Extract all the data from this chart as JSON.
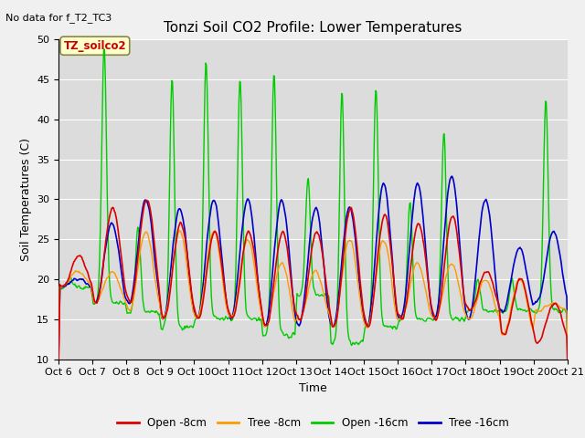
{
  "title": "Tonzi Soil CO2 Profile: Lower Temperatures",
  "subtitle": "No data for f_T2_TC3",
  "xlabel": "Time",
  "ylabel": "Soil Temperatures (C)",
  "ylim": [
    10,
    50
  ],
  "xlim": [
    0,
    15
  ],
  "plot_bg_color": "#dcdcdc",
  "fig_bg_color": "#f0f0f0",
  "legend_labels": [
    "Open -8cm",
    "Tree -8cm",
    "Open -16cm",
    "Tree -16cm"
  ],
  "legend_colors": [
    "#dd0000",
    "#ff9900",
    "#00cc00",
    "#0000cc"
  ],
  "xtick_labels": [
    "Oct 6",
    "Oct 7",
    "Oct 8",
    "Oct 9",
    "Oct 10",
    "Oct 11",
    "Oct 12",
    "Oct 13",
    "Oct 14",
    "Oct 15",
    "Oct 16",
    "Oct 17",
    "Oct 18",
    "Oct 19",
    "Oct 20",
    "Oct 21"
  ],
  "ytick_vals": [
    10,
    15,
    20,
    25,
    30,
    35,
    40,
    45,
    50
  ],
  "annotation_text": "TZ_soilco2",
  "annotation_color": "#cc0000",
  "annotation_bg": "#ffffcc",
  "annotation_border": "#888844",
  "title_fontsize": 11,
  "axis_fontsize": 9,
  "tick_fontsize": 8
}
